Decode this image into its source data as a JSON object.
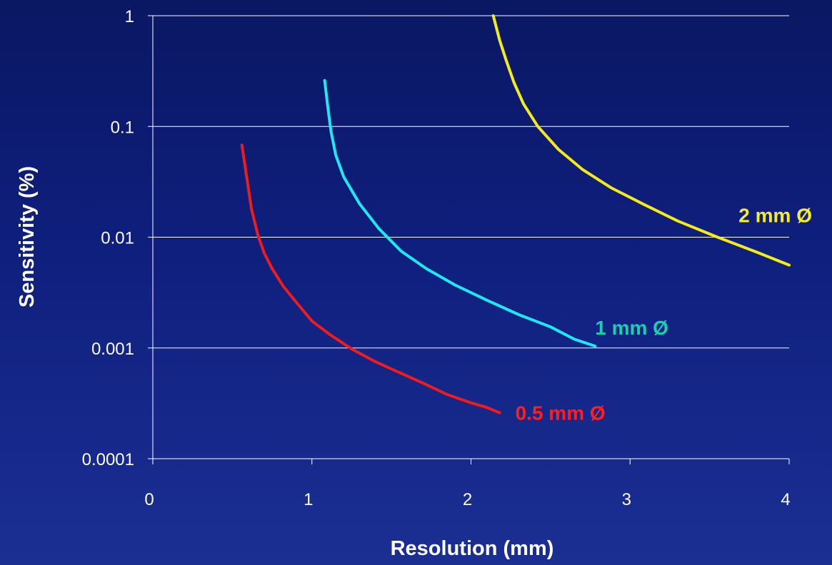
{
  "chart_data": {
    "type": "line",
    "title": "",
    "xlabel": "Resolution (mm)",
    "ylabel": "Sensitivity (%)",
    "xlim": [
      0,
      4
    ],
    "ylim": [
      0.0001,
      1
    ],
    "yscale": "log",
    "grid": "horizontal",
    "legend": "inline labels at series ends",
    "x_ticks": [
      "0",
      "1",
      "2",
      "3",
      "4"
    ],
    "y_ticks": [
      "1",
      "0.1",
      "0.01",
      "0.001",
      "0.0001"
    ],
    "series": [
      {
        "name": "0.5 mm Ø",
        "color": "#ee1c1c",
        "label_color": "#ff1e1e",
        "points": [
          [
            0.56,
            0.068
          ],
          [
            0.59,
            0.035
          ],
          [
            0.62,
            0.018
          ],
          [
            0.66,
            0.0105
          ],
          [
            0.7,
            0.0072
          ],
          [
            0.75,
            0.0052
          ],
          [
            0.82,
            0.0036
          ],
          [
            0.9,
            0.0026
          ],
          [
            1.0,
            0.00175
          ],
          [
            1.12,
            0.0013
          ],
          [
            1.25,
            0.00098
          ],
          [
            1.4,
            0.00075
          ],
          [
            1.55,
            0.0006
          ],
          [
            1.7,
            0.00048
          ],
          [
            1.85,
            0.00038
          ],
          [
            2.0,
            0.00032
          ],
          [
            2.1,
            0.00029
          ],
          [
            2.18,
            0.00026
          ]
        ]
      },
      {
        "name": "1 mm Ø",
        "color": "#1ee8f0",
        "label_color": "#19cfae",
        "points": [
          [
            1.08,
            0.26
          ],
          [
            1.1,
            0.15
          ],
          [
            1.12,
            0.09
          ],
          [
            1.15,
            0.055
          ],
          [
            1.2,
            0.035
          ],
          [
            1.3,
            0.02
          ],
          [
            1.42,
            0.012
          ],
          [
            1.56,
            0.0075
          ],
          [
            1.72,
            0.0052
          ],
          [
            1.9,
            0.0037
          ],
          [
            2.1,
            0.0027
          ],
          [
            2.3,
            0.002
          ],
          [
            2.5,
            0.00155
          ],
          [
            2.65,
            0.0012
          ],
          [
            2.78,
            0.00104
          ]
        ]
      },
      {
        "name": "2 mm Ø",
        "color": "#f3ec18",
        "label_color": "#f7ee1e",
        "points": [
          [
            2.14,
            1.0
          ],
          [
            2.18,
            0.6
          ],
          [
            2.22,
            0.4
          ],
          [
            2.27,
            0.25
          ],
          [
            2.33,
            0.16
          ],
          [
            2.42,
            0.1
          ],
          [
            2.55,
            0.062
          ],
          [
            2.7,
            0.041
          ],
          [
            2.88,
            0.028
          ],
          [
            3.08,
            0.02
          ],
          [
            3.3,
            0.014
          ],
          [
            3.55,
            0.01
          ],
          [
            3.8,
            0.0073
          ],
          [
            4.0,
            0.0056
          ]
        ]
      }
    ]
  }
}
